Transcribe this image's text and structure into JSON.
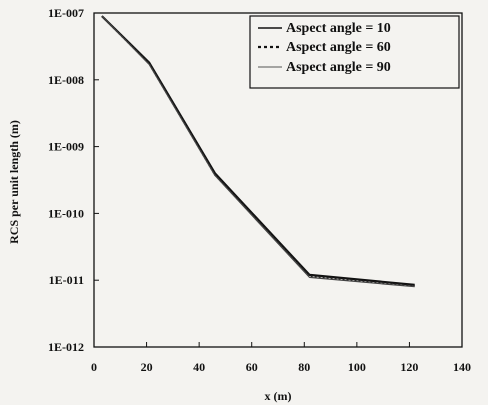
{
  "chart_data": {
    "type": "line",
    "title": "",
    "xlabel": "x (m)",
    "ylabel": "RCS per unit length (m)",
    "xlim": [
      0,
      140
    ],
    "y_scale": "log",
    "ylim": [
      1e-12,
      1e-07
    ],
    "x_ticks": [
      0,
      20,
      40,
      60,
      80,
      100,
      120,
      140
    ],
    "x_tick_labels": [
      "0",
      "20",
      "40",
      "60",
      "80",
      "100",
      "120",
      "140"
    ],
    "y_ticks": [
      1e-07,
      1e-08,
      1e-09,
      1e-10,
      1e-11,
      1e-12
    ],
    "y_tick_labels": [
      "1E-007",
      "1E-008",
      "1E-009",
      "1E-010",
      "1E-011",
      "1E-012"
    ],
    "grid": false,
    "legend_position": "top-right",
    "series": [
      {
        "name": "Aspect angle = 10",
        "style": "solid",
        "x": [
          3,
          21,
          46,
          82,
          122
        ],
        "y": [
          9e-08,
          1.8e-08,
          4e-10,
          1.2e-11,
          8.5e-12
        ]
      },
      {
        "name": "Aspect angle = 60",
        "style": "dotted",
        "x": [
          3,
          21,
          46,
          82,
          122
        ],
        "y": [
          9e-08,
          1.75e-08,
          3.8e-10,
          1.15e-11,
          8.2e-12
        ]
      },
      {
        "name": "Aspect angle = 90",
        "style": "thin",
        "x": [
          3,
          21,
          46,
          82,
          122
        ],
        "y": [
          9e-08,
          1.7e-08,
          3.7e-10,
          1.1e-11,
          8e-12
        ]
      }
    ],
    "legend_labels": [
      "Aspect angle = 10",
      "Aspect angle = 60",
      "Aspect angle = 90"
    ]
  }
}
